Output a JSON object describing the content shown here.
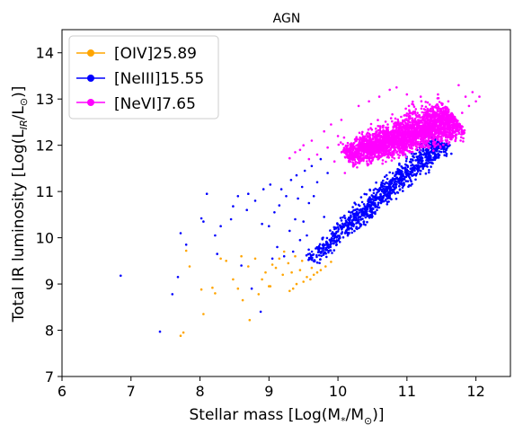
{
  "chart_data": {
    "type": "scatter",
    "title": "AGN",
    "xlabel": "Stellar mass [Log(M",
    "xlabel_sub": "*",
    "xlabel_mid": "/M",
    "xlabel_sub2": "⊙",
    "xlabel_end": ")]",
    "ylabel": "Total IR luminosity [Log(L",
    "ylabel_sub": "IR",
    "ylabel_mid": "/L",
    "ylabel_sub2": "⊙",
    "ylabel_end": ")]",
    "xlim": [
      6,
      12.5
    ],
    "ylim": [
      7,
      14.5
    ],
    "x_ticks": [
      6,
      7,
      8,
      9,
      10,
      11,
      12
    ],
    "y_ticks": [
      7,
      8,
      9,
      10,
      11,
      12,
      13,
      14
    ],
    "grid": false,
    "legend_position": "top-left",
    "series": [
      {
        "name": "[OIV]25.89",
        "color": "#ffa500",
        "points": [
          [
            7.72,
            7.88
          ],
          [
            7.76,
            7.95
          ],
          [
            7.8,
            9.72
          ],
          [
            7.85,
            9.38
          ],
          [
            8.02,
            8.88
          ],
          [
            8.05,
            8.35
          ],
          [
            8.18,
            8.92
          ],
          [
            8.22,
            8.8
          ],
          [
            8.3,
            9.55
          ],
          [
            8.38,
            9.5
          ],
          [
            8.48,
            9.1
          ],
          [
            8.55,
            8.9
          ],
          [
            8.62,
            8.65
          ],
          [
            8.7,
            9.38
          ],
          [
            8.72,
            8.22
          ],
          [
            8.8,
            9.55
          ],
          [
            8.85,
            8.78
          ],
          [
            8.9,
            9.1
          ],
          [
            8.95,
            9.25
          ],
          [
            9.02,
            8.95
          ],
          [
            9.05,
            9.42
          ],
          [
            9.1,
            9.35
          ],
          [
            9.15,
            9.55
          ],
          [
            9.2,
            9.2
          ],
          [
            9.22,
            9.7
          ],
          [
            9.28,
            9.45
          ],
          [
            9.3,
            8.85
          ],
          [
            9.35,
            8.9
          ],
          [
            9.38,
            9.6
          ],
          [
            9.4,
            9.0
          ],
          [
            9.45,
            9.3
          ],
          [
            9.5,
            9.05
          ],
          [
            9.55,
            9.15
          ],
          [
            9.6,
            9.1
          ],
          [
            9.62,
            9.35
          ],
          [
            9.65,
            9.2
          ],
          [
            9.7,
            9.25
          ],
          [
            9.75,
            9.3
          ],
          [
            9.82,
            9.38
          ],
          [
            9.9,
            9.48
          ],
          [
            8.6,
            9.6
          ],
          [
            9.0,
            8.95
          ],
          [
            9.33,
            9.25
          ],
          [
            9.48,
            9.5
          ]
        ]
      },
      {
        "name": "[NeIII]15.55",
        "color": "#0000ff",
        "dense": {
          "from": [
            9.6,
            9.5
          ],
          "to": [
            11.5,
            12.1
          ],
          "width": 0.45,
          "count": 1000
        },
        "points": [
          [
            6.85,
            9.18
          ],
          [
            7.42,
            7.97
          ],
          [
            7.6,
            8.78
          ],
          [
            7.68,
            9.15
          ],
          [
            7.72,
            10.1
          ],
          [
            7.8,
            9.85
          ],
          [
            8.02,
            10.42
          ],
          [
            8.05,
            10.35
          ],
          [
            8.1,
            10.95
          ],
          [
            8.22,
            10.05
          ],
          [
            8.25,
            9.65
          ],
          [
            8.3,
            10.25
          ],
          [
            8.45,
            10.4
          ],
          [
            8.48,
            10.68
          ],
          [
            8.55,
            10.9
          ],
          [
            8.6,
            9.4
          ],
          [
            8.68,
            10.6
          ],
          [
            8.7,
            10.95
          ],
          [
            8.75,
            8.9
          ],
          [
            8.8,
            10.8
          ],
          [
            8.88,
            8.4
          ],
          [
            8.9,
            10.3
          ],
          [
            8.92,
            11.05
          ],
          [
            9.0,
            10.25
          ],
          [
            9.02,
            11.15
          ],
          [
            9.05,
            9.55
          ],
          [
            9.08,
            10.55
          ],
          [
            9.12,
            9.8
          ],
          [
            9.15,
            10.7
          ],
          [
            9.18,
            11.05
          ],
          [
            9.22,
            9.6
          ],
          [
            9.25,
            10.9
          ],
          [
            9.3,
            10.15
          ],
          [
            9.32,
            11.25
          ],
          [
            9.35,
            9.7
          ],
          [
            9.38,
            10.4
          ],
          [
            9.4,
            11.35
          ],
          [
            9.42,
            10.85
          ],
          [
            9.45,
            9.95
          ],
          [
            9.48,
            11.1
          ],
          [
            9.5,
            10.35
          ],
          [
            9.52,
            11.45
          ],
          [
            9.55,
            10.05
          ],
          [
            9.58,
            10.75
          ],
          [
            9.62,
            11.55
          ],
          [
            9.65,
            10.9
          ],
          [
            9.7,
            11.2
          ],
          [
            9.75,
            11.7
          ],
          [
            9.8,
            10.45
          ],
          [
            9.85,
            11.4
          ]
        ]
      },
      {
        "name": "[NeVI]7.65",
        "color": "#ff00ff",
        "dense": {
          "from": [
            10.1,
            11.75
          ],
          "to": [
            11.7,
            12.6
          ],
          "width": 0.85,
          "count": 2600
        },
        "points": [
          [
            9.3,
            11.72
          ],
          [
            9.38,
            11.85
          ],
          [
            9.45,
            11.9
          ],
          [
            9.5,
            12.0
          ],
          [
            9.58,
            11.7
          ],
          [
            9.62,
            12.1
          ],
          [
            9.7,
            11.8
          ],
          [
            9.8,
            12.3
          ],
          [
            9.85,
            11.95
          ],
          [
            9.9,
            12.45
          ],
          [
            9.95,
            11.65
          ],
          [
            10.0,
            12.2
          ],
          [
            10.05,
            12.55
          ],
          [
            10.1,
            11.4
          ],
          [
            11.8,
            12.7
          ],
          [
            11.85,
            13.05
          ],
          [
            11.9,
            12.85
          ],
          [
            11.95,
            13.15
          ],
          [
            12.0,
            12.95
          ],
          [
            12.05,
            13.05
          ],
          [
            11.75,
            13.3
          ],
          [
            11.6,
            12.95
          ],
          [
            11.45,
            13.1
          ],
          [
            10.85,
            13.25
          ],
          [
            10.3,
            12.85
          ],
          [
            10.45,
            12.95
          ],
          [
            10.6,
            13.05
          ],
          [
            11.0,
            13.1
          ],
          [
            11.2,
            13.05
          ],
          [
            10.75,
            13.2
          ]
        ]
      }
    ]
  }
}
